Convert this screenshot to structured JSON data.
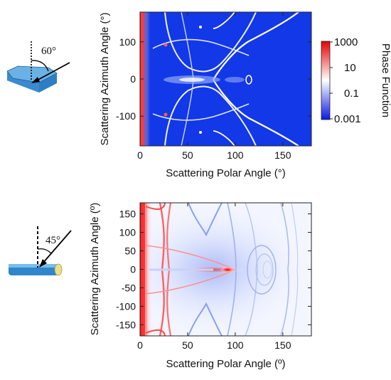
{
  "colors": {
    "low": "#0a18e6",
    "mid": "#ffffff",
    "high": "#e80000",
    "panel_bg_top": "#1238e8",
    "panel_bg_bottom": "#f3f6ff",
    "crystal_fill": "#3b8fd0"
  },
  "diagrams": {
    "top": {
      "angle_label": "60°",
      "shape": "hexagonal-plate-icon"
    },
    "bottom": {
      "angle_label": "45°",
      "shape": "hexagonal-column-icon"
    }
  },
  "colorbar": {
    "title": "Phase Function",
    "scale": "log",
    "ticks": [
      "1000",
      "10",
      "0.1",
      "0.001"
    ],
    "range": [
      0.001,
      1000
    ]
  },
  "chart_data": [
    {
      "type": "heatmap",
      "xlabel": "Scattering Polar Angle (°)",
      "ylabel": "Scattering Azimuth Angle (°)",
      "xlim": [
        0,
        180
      ],
      "ylim": [
        -180,
        180
      ],
      "xticks": [
        "0",
        "50",
        "100",
        "150"
      ],
      "yticks": [
        "100",
        "0",
        "-100"
      ],
      "colormap": "log phase function, blue (0.001) – white (0.1) – red (1000)",
      "background": "blue",
      "bright_features": [
        {
          "kind": "forward-peak",
          "polar": 0
        },
        {
          "kind": "halo-ring",
          "polar": 22
        },
        {
          "kind": "halo-ring",
          "polar": 46
        },
        {
          "kind": "arc",
          "azimuth_center": 0,
          "polar_vertex": 60
        },
        {
          "kind": "spot",
          "polar": 112,
          "azimuth": 0
        }
      ]
    },
    {
      "type": "heatmap",
      "xlabel": "Scattering Polar Angle (º)",
      "ylabel": "Scattering Azimuth Angle (º)",
      "xlim": [
        0,
        180
      ],
      "ylim": [
        -180,
        180
      ],
      "xticks": [
        "0",
        "50",
        "100",
        "150"
      ],
      "yticks": [
        "150",
        "100",
        "50",
        "0",
        "-50",
        "-100",
        "-150"
      ],
      "colormap": "log phase function, blue (0.001) – white (0.1) – red (1000)",
      "background": "light",
      "bright_features": [
        {
          "kind": "forward-peak",
          "polar": 0
        },
        {
          "kind": "halo-ring",
          "polar": 22
        },
        {
          "kind": "specular-spot",
          "polar": 90,
          "azimuth": 0
        },
        {
          "kind": "arcs",
          "polar_range": [
            40,
            160
          ]
        }
      ]
    }
  ]
}
